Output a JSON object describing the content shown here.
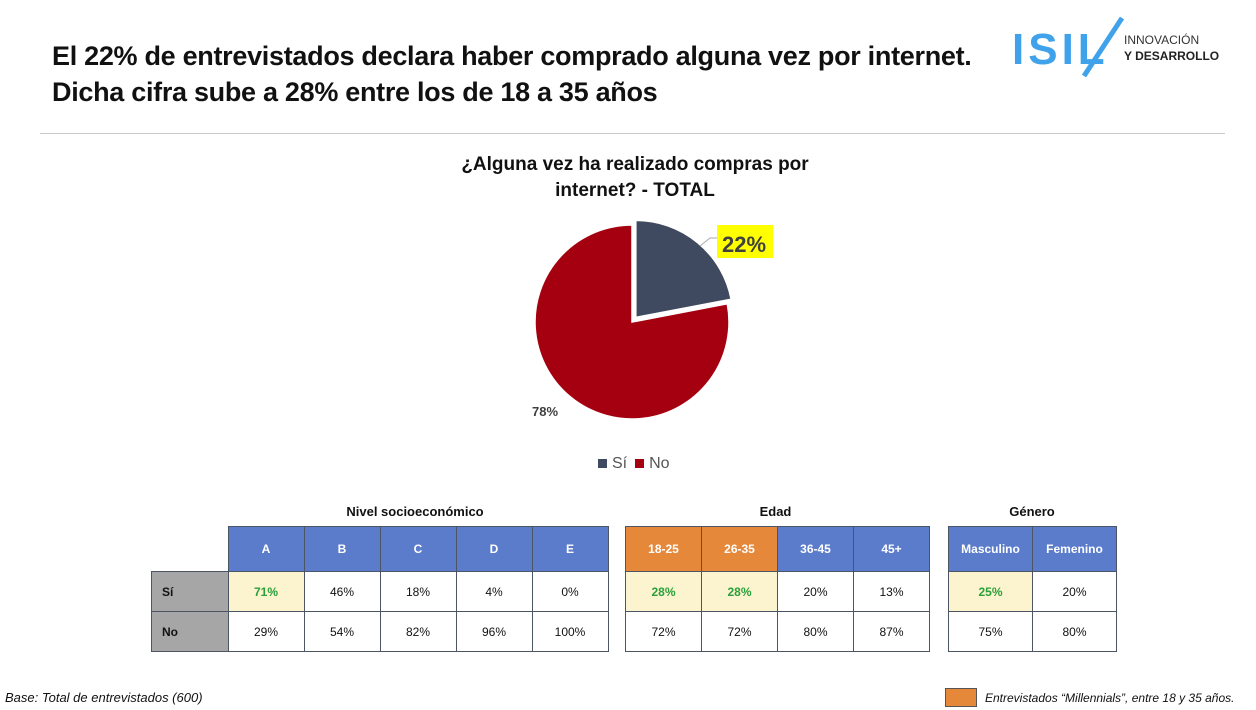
{
  "header": {
    "title_line1": "El 22% de entrevistados declara haber comprado alguna vez por internet.",
    "title_line2": "Dicha cifra sube a 28% entre los de 18 a 35 años"
  },
  "logo": {
    "text": "ISIL",
    "line1": "INNOVACIÓN",
    "line2": "Y DESARROLLO",
    "color": "#3fa2ea"
  },
  "chart_data": {
    "type": "pie",
    "title_line1": "¿Alguna vez ha realizado compras por",
    "title_line2": "internet? - TOTAL",
    "slices": [
      {
        "name": "Sí",
        "value": 22,
        "label": "22%",
        "color": "#3f4a61",
        "highlight": "#ffff00",
        "exploded": true
      },
      {
        "name": "No",
        "value": 78,
        "label": "78%",
        "color": "#a50010"
      }
    ],
    "legend": "bottom"
  },
  "tables": {
    "row_labels": [
      "Sí",
      "No"
    ],
    "nse": {
      "title": "Nivel socioeconómico",
      "cols": [
        "A",
        "B",
        "C",
        "D",
        "E"
      ],
      "si": [
        "71%",
        "46%",
        "18%",
        "4%",
        "0%"
      ],
      "no": [
        "29%",
        "54%",
        "82%",
        "96%",
        "100%"
      ]
    },
    "edad": {
      "title": "Edad",
      "cols": [
        "18-25",
        "26-35",
        "36-45",
        "45+"
      ],
      "si": [
        "28%",
        "28%",
        "20%",
        "13%"
      ],
      "no": [
        "72%",
        "72%",
        "80%",
        "87%"
      ]
    },
    "genero": {
      "title": "Género",
      "cols": [
        "Masculino",
        "Femenino"
      ],
      "si": [
        "25%",
        "20%"
      ],
      "no": [
        "75%",
        "80%"
      ]
    },
    "colors": {
      "header": "#5b7bcb",
      "millennials": "#e5883a",
      "highlight": "#fcf3cf"
    }
  },
  "footer": {
    "base": "Base: Total de entrevistados (600)",
    "note": "Entrevistados “Millennials”, entre 18 y 35 años."
  }
}
